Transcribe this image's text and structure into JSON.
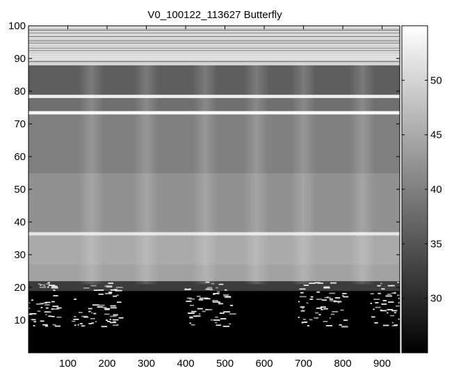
{
  "chart_data": {
    "type": "heatmap",
    "title": "V0_100122_113627 Butterfly",
    "xlabel": "",
    "ylabel": "",
    "xlim": [
      0,
      945
    ],
    "ylim": [
      0,
      100
    ],
    "x_ticks": [
      "100",
      "200",
      "300",
      "400",
      "500",
      "600",
      "700",
      "800",
      "900"
    ],
    "x_tick_values": [
      100,
      200,
      300,
      400,
      500,
      600,
      700,
      800,
      900
    ],
    "y_ticks": [
      "10",
      "20",
      "30",
      "40",
      "50",
      "60",
      "70",
      "80",
      "90",
      "100"
    ],
    "y_tick_values": [
      10,
      20,
      30,
      40,
      50,
      60,
      70,
      80,
      90,
      100
    ],
    "colorbar": {
      "colormap": "gray",
      "range": [
        25,
        55
      ],
      "ticks": [
        "30",
        "35",
        "40",
        "45",
        "50"
      ],
      "tick_values": [
        30,
        35,
        40,
        45,
        50
      ]
    },
    "grid": false,
    "legend": "none",
    "bands": [
      {
        "y_range": [
          0,
          19
        ],
        "value": 25
      },
      {
        "y_range": [
          19,
          22
        ],
        "value": 32
      },
      {
        "y_range": [
          22,
          27
        ],
        "value": 44
      },
      {
        "y_range": [
          27,
          36
        ],
        "value": 45
      },
      {
        "y_range": [
          36,
          37
        ],
        "value": 52
      },
      {
        "y_range": [
          37,
          55
        ],
        "value": 42
      },
      {
        "y_range": [
          55,
          73
        ],
        "value": 40
      },
      {
        "y_range": [
          73,
          74
        ],
        "value": 54
      },
      {
        "y_range": [
          74,
          78
        ],
        "value": 38
      },
      {
        "y_range": [
          78,
          79
        ],
        "value": 53
      },
      {
        "y_range": [
          79,
          88
        ],
        "value": 36
      },
      {
        "y_range": [
          88,
          100
        ],
        "value": 50
      }
    ],
    "vertical_streaks_x": [
      160,
      300,
      450,
      580,
      700,
      850
    ]
  }
}
